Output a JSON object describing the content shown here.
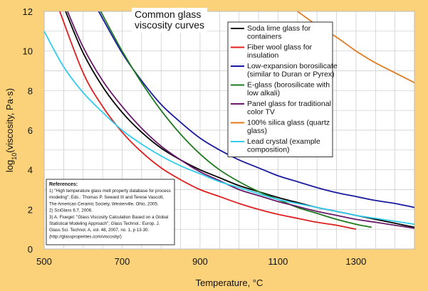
{
  "chart_data": {
    "type": "line",
    "title_lines": [
      "Common glass",
      "viscosity curves"
    ],
    "xlabel": "Temperature, °C",
    "ylabel": "log10(viscosity, Pa·s)",
    "xlim": [
      500,
      1450
    ],
    "ylim": [
      0,
      12
    ],
    "xticks": [
      500,
      700,
      900,
      1100,
      1300
    ],
    "yticks": [
      0,
      2,
      4,
      6,
      8,
      10,
      12
    ],
    "grid": true,
    "legend_placement": "top-right",
    "series": [
      {
        "name": "Soda lime glass for containers",
        "legend_lines": [
          "Soda lime glass for",
          "containers"
        ],
        "color": "#000000",
        "points": [
          [
            555,
            12
          ],
          [
            600,
            9.9
          ],
          [
            650,
            8.2
          ],
          [
            700,
            6.9
          ],
          [
            750,
            5.9
          ],
          [
            800,
            5.1
          ],
          [
            850,
            4.5
          ],
          [
            900,
            4.0
          ],
          [
            950,
            3.6
          ],
          [
            1000,
            3.2
          ],
          [
            1050,
            2.9
          ],
          [
            1100,
            2.6
          ],
          [
            1150,
            2.35
          ],
          [
            1200,
            2.1
          ],
          [
            1250,
            1.9
          ],
          [
            1300,
            1.7
          ],
          [
            1350,
            1.5
          ],
          [
            1400,
            1.3
          ],
          [
            1450,
            1.1
          ]
        ]
      },
      {
        "name": "Fiber wool glass for insulation",
        "legend_lines": [
          "Fiber wool glass for",
          "insulation"
        ],
        "color": "#e02020",
        "points": [
          [
            540,
            12
          ],
          [
            600,
            8.9
          ],
          [
            650,
            7.2
          ],
          [
            700,
            5.9
          ],
          [
            750,
            4.9
          ],
          [
            800,
            4.1
          ],
          [
            850,
            3.5
          ],
          [
            900,
            3.0
          ],
          [
            950,
            2.65
          ],
          [
            1000,
            2.3
          ],
          [
            1050,
            2.0
          ],
          [
            1100,
            1.75
          ],
          [
            1150,
            1.55
          ],
          [
            1200,
            1.35
          ],
          [
            1250,
            1.2
          ],
          [
            1300,
            1.0
          ]
        ]
      },
      {
        "name": "Low-expansion borosilicate (similar to Duran or Pyrex)",
        "legend_lines": [
          "Low-expansion borosilicate",
          "(similar to Duran or Pyrex)"
        ],
        "color": "#1a1a9e",
        "points": [
          [
            640,
            12
          ],
          [
            700,
            9.9
          ],
          [
            750,
            8.5
          ],
          [
            800,
            7.3
          ],
          [
            850,
            6.4
          ],
          [
            900,
            5.6
          ],
          [
            950,
            5.0
          ],
          [
            1000,
            4.5
          ],
          [
            1050,
            4.1
          ],
          [
            1100,
            3.7
          ],
          [
            1150,
            3.4
          ],
          [
            1200,
            3.1
          ],
          [
            1250,
            2.85
          ],
          [
            1300,
            2.65
          ],
          [
            1350,
            2.45
          ],
          [
            1400,
            2.3
          ],
          [
            1450,
            2.1
          ]
        ]
      },
      {
        "name": "E-glass (borosilicate with low alkali)",
        "legend_lines": [
          "E-glass (borosilicate with",
          "low alkali)"
        ],
        "color": "#1e7a1e",
        "points": [
          [
            645,
            12
          ],
          [
            700,
            10.0
          ],
          [
            750,
            8.4
          ],
          [
            800,
            7.0
          ],
          [
            850,
            5.8
          ],
          [
            900,
            4.8
          ],
          [
            950,
            4.0
          ],
          [
            1000,
            3.4
          ],
          [
            1050,
            2.9
          ],
          [
            1100,
            2.5
          ],
          [
            1150,
            2.1
          ],
          [
            1200,
            1.8
          ],
          [
            1250,
            1.5
          ],
          [
            1300,
            1.25
          ],
          [
            1340,
            1.1
          ]
        ]
      },
      {
        "name": "Panel glass for traditional color TV",
        "legend_lines": [
          "Panel glass for traditional",
          "color TV"
        ],
        "color": "#6a1a6a",
        "points": [
          [
            560,
            12
          ],
          [
            600,
            10.2
          ],
          [
            650,
            8.5
          ],
          [
            700,
            7.2
          ],
          [
            750,
            6.1
          ],
          [
            800,
            5.2
          ],
          [
            850,
            4.5
          ],
          [
            900,
            3.9
          ],
          [
            950,
            3.45
          ],
          [
            1000,
            3.0
          ],
          [
            1050,
            2.7
          ],
          [
            1100,
            2.4
          ],
          [
            1150,
            2.15
          ],
          [
            1200,
            1.9
          ],
          [
            1250,
            1.7
          ],
          [
            1300,
            1.5
          ],
          [
            1350,
            1.35
          ],
          [
            1400,
            1.2
          ],
          [
            1450,
            1.05
          ]
        ]
      },
      {
        "name": "100% silica glass (quartz glass)",
        "legend_lines": [
          "100% silica glass (quartz",
          "glass)"
        ],
        "color": "#e07a20",
        "points": [
          [
            1150,
            12
          ],
          [
            1200,
            11.3
          ],
          [
            1250,
            10.7
          ],
          [
            1300,
            10.0
          ],
          [
            1350,
            9.4
          ],
          [
            1400,
            8.9
          ],
          [
            1450,
            8.4
          ]
        ]
      },
      {
        "name": "Lead crystal (example composition)",
        "legend_lines": [
          "Lead crystal (example",
          "composition)"
        ],
        "color": "#33ccee",
        "points": [
          [
            500,
            11.0
          ],
          [
            550,
            9.2
          ],
          [
            600,
            7.9
          ],
          [
            650,
            6.9
          ],
          [
            700,
            6.0
          ],
          [
            750,
            5.3
          ],
          [
            800,
            4.7
          ],
          [
            850,
            4.2
          ],
          [
            900,
            3.8
          ],
          [
            950,
            3.4
          ],
          [
            1000,
            3.1
          ],
          [
            1050,
            2.8
          ],
          [
            1100,
            2.5
          ],
          [
            1150,
            2.3
          ],
          [
            1200,
            2.1
          ],
          [
            1250,
            1.9
          ],
          [
            1300,
            1.7
          ],
          [
            1350,
            1.55
          ],
          [
            1400,
            1.4
          ],
          [
            1450,
            1.25
          ]
        ]
      }
    ]
  },
  "references": {
    "heading": "References:",
    "lines": [
      "1) \"High temperature glass melt property database for process",
      "modeling\"; Eds.: Thomas P. Seward III and Terese Vascott,",
      "The American Ceramic Society, Westerville, Ohio, 2005.",
      "2) SciGlass 6.7, 2006.",
      "3) A. Fluegel: \"Glass Viscosity Calculation Based on a Global",
      "Statistical Modeling Approach\"; Glass Technol.: Europ. J.",
      "Glass Sci. Technol. A, vol. 48, 2007, no. 1, p 13-30.",
      "(http://glassproperties.com/viscosity/)"
    ]
  },
  "ylabel_parts": {
    "prefix": "log",
    "subscript": "10",
    "suffix": "(viscosity, Pa·s)"
  }
}
